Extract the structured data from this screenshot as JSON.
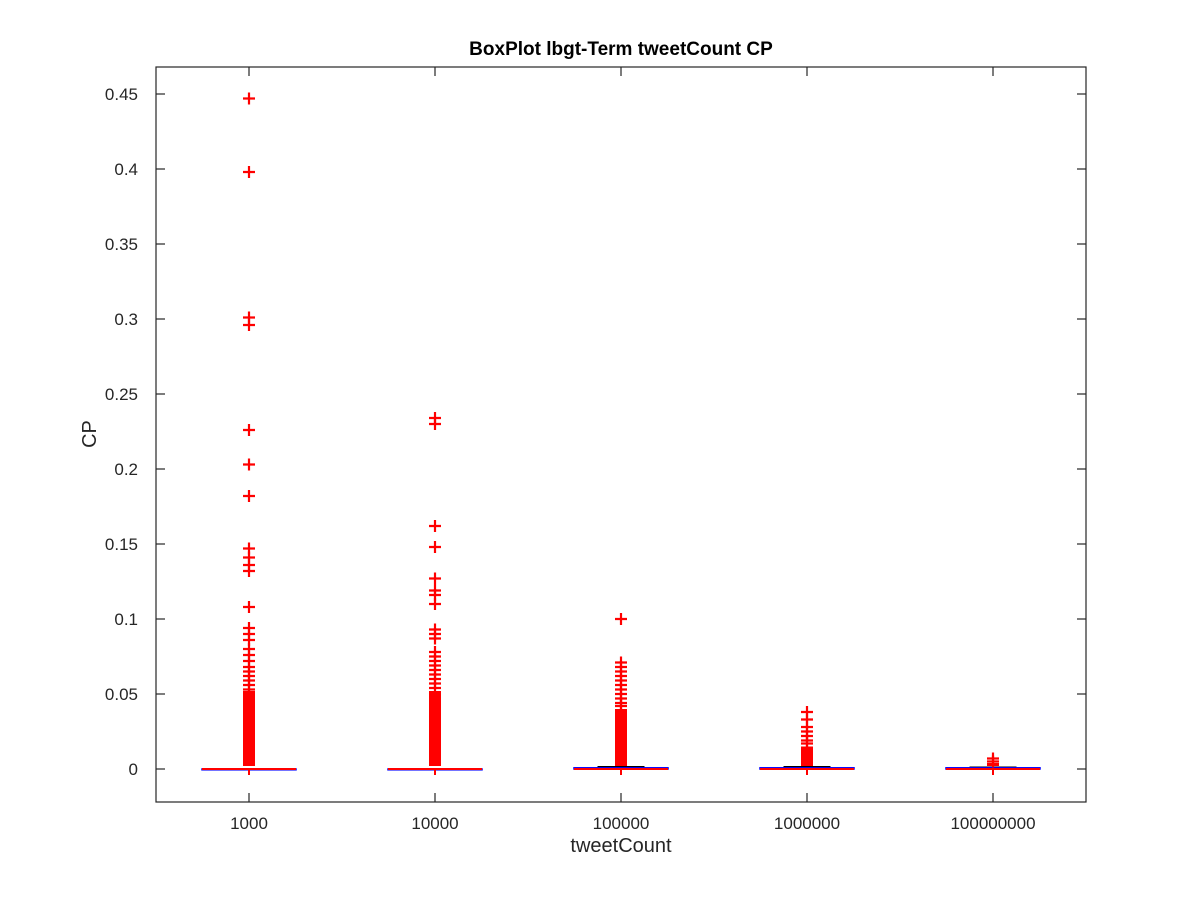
{
  "chart_data": {
    "type": "box",
    "title": "BoxPlot lbgt-Term tweetCount CP",
    "xlabel": "tweetCount",
    "ylabel": "CP",
    "categories": [
      "1000",
      "10000",
      "100000",
      "1000000",
      "100000000"
    ],
    "ylim": [
      -0.022,
      0.468
    ],
    "yticks": [
      0,
      0.05,
      0.1,
      0.15,
      0.2,
      0.25,
      0.3,
      0.35,
      0.4,
      0.45
    ],
    "ytick_labels": [
      "0",
      "0.05",
      "0.1",
      "0.15",
      "0.2",
      "0.25",
      "0.3",
      "0.35",
      "0.4",
      "0.45"
    ],
    "grid": false,
    "colors": {
      "outlier": "#ff0000",
      "median": "#ff0000",
      "box": "#0000ff",
      "whisker": "#000000",
      "axis": "#262626"
    },
    "boxes": [
      {
        "category": "1000",
        "q1": 0,
        "median": 0,
        "q3": 0,
        "whisker_low": 0,
        "whisker_high": 0,
        "outliers": [
          0.447,
          0.398,
          0.301,
          0.296,
          0.226,
          0.203,
          0.182,
          0.147,
          0.141,
          0.136,
          0.132,
          0.108,
          0.094,
          0.09,
          0.086,
          0.08,
          0.076,
          0.072,
          0.068,
          0.065,
          0.062,
          0.059,
          0.056,
          0.053
        ],
        "outlier_fill_range": [
          0.002,
          0.052
        ]
      },
      {
        "category": "10000",
        "q1": 0,
        "median": 0,
        "q3": 0,
        "whisker_low": 0,
        "whisker_high": 0,
        "outliers": [
          0.234,
          0.23,
          0.162,
          0.148,
          0.127,
          0.119,
          0.116,
          0.11,
          0.093,
          0.09,
          0.087,
          0.078,
          0.075,
          0.072,
          0.069,
          0.066,
          0.063,
          0.06,
          0.057,
          0.054
        ],
        "outlier_fill_range": [
          0.002,
          0.052
        ]
      },
      {
        "category": "100000",
        "q1": 0,
        "median": 0,
        "q3": 0.0008,
        "whisker_low": 0,
        "whisker_high": 0.0015,
        "outliers": [
          0.1,
          0.071,
          0.068,
          0.065,
          0.062,
          0.059,
          0.056,
          0.053,
          0.05,
          0.047,
          0.044,
          0.042
        ],
        "outlier_fill_range": [
          0.002,
          0.04
        ]
      },
      {
        "category": "1000000",
        "q1": 0,
        "median": 0,
        "q3": 0.0008,
        "whisker_low": 0,
        "whisker_high": 0.0015,
        "outliers": [
          0.038,
          0.033,
          0.028,
          0.025,
          0.022,
          0.019,
          0.017
        ],
        "outlier_fill_range": [
          0.002,
          0.015
        ]
      },
      {
        "category": "100000000",
        "q1": 0,
        "median": 0,
        "q3": 0.0008,
        "whisker_low": 0,
        "whisker_high": 0.0012,
        "outliers": [
          0.007,
          0.005
        ],
        "outlier_fill_range": [
          0.002,
          0.004
        ]
      }
    ]
  }
}
